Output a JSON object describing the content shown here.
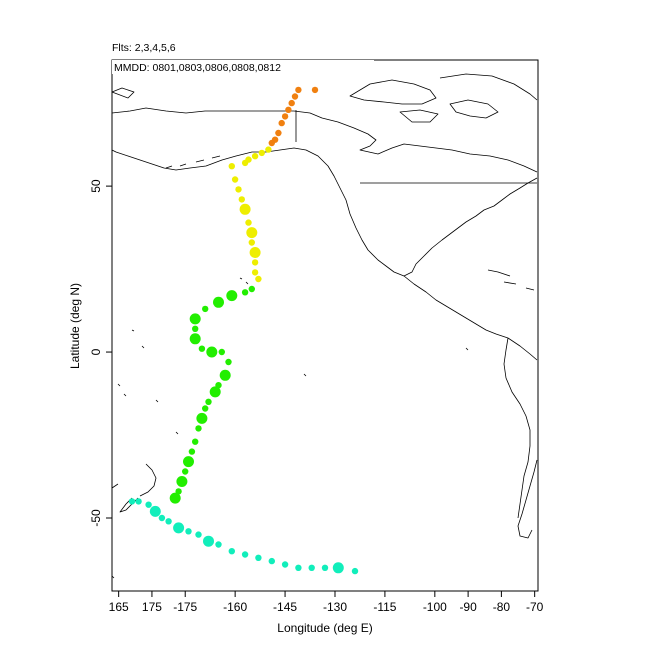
{
  "header": {
    "flights_label": "Flts: 2,3,4,5,6",
    "dates_label": "MMDD: 0801,0803,0806,0808,0812"
  },
  "axes": {
    "xlabel": "Longitude (deg E)",
    "ylabel": "Latitude (deg N)",
    "x_ticks": [
      {
        "value": 165,
        "label": "165"
      },
      {
        "value": 175,
        "label": "175"
      },
      {
        "value": 185,
        "label": "-175"
      },
      {
        "value": 200,
        "label": "-160"
      },
      {
        "value": 215,
        "label": "-145"
      },
      {
        "value": 230,
        "label": "-130"
      },
      {
        "value": 245,
        "label": "-115"
      },
      {
        "value": 260,
        "label": "-100"
      },
      {
        "value": 270,
        "label": "-90"
      },
      {
        "value": 280,
        "label": "-80"
      },
      {
        "value": 290,
        "label": "-70"
      }
    ],
    "y_ticks": [
      {
        "value": 50,
        "label": "50"
      },
      {
        "value": 0,
        "label": "0"
      },
      {
        "value": -50,
        "label": "-50"
      }
    ]
  },
  "chart_data": {
    "type": "scatter",
    "xlim": [
      163,
      291
    ],
    "ylim": [
      -72,
      88
    ],
    "grid": false,
    "series": [
      {
        "color": "#f08010",
        "points": [
          [
            224,
            79,
            1
          ],
          [
            219,
            79,
            1
          ],
          [
            218,
            77,
            1
          ],
          [
            217,
            75,
            1
          ],
          [
            216,
            73,
            1
          ],
          [
            215,
            71,
            1
          ],
          [
            214,
            69,
            1
          ],
          [
            213,
            66,
            1
          ],
          [
            212,
            64,
            1
          ],
          [
            211,
            63,
            1
          ]
        ]
      },
      {
        "color": "#eeee00",
        "points": [
          [
            210,
            61,
            1
          ],
          [
            208,
            60,
            1
          ],
          [
            206,
            59,
            1
          ],
          [
            204,
            58,
            1
          ],
          [
            203,
            57,
            1
          ],
          [
            199,
            56,
            1
          ],
          [
            200,
            52,
            1
          ],
          [
            201,
            49,
            1
          ],
          [
            202,
            46,
            1
          ],
          [
            203,
            43,
            2
          ],
          [
            204,
            39,
            1
          ],
          [
            205,
            36,
            2
          ],
          [
            205,
            33,
            1
          ],
          [
            206,
            30,
            2
          ],
          [
            206,
            27,
            1
          ],
          [
            206,
            24,
            1
          ],
          [
            207,
            22,
            1
          ]
        ]
      },
      {
        "color": "#22ee00",
        "points": [
          [
            205,
            19,
            1
          ],
          [
            203,
            18,
            1
          ],
          [
            199,
            17,
            2
          ],
          [
            195,
            15,
            2
          ],
          [
            191,
            13,
            1
          ],
          [
            188,
            10,
            2
          ],
          [
            188,
            7,
            1
          ],
          [
            188,
            4,
            2
          ],
          [
            190,
            1,
            1
          ],
          [
            193,
            0,
            2
          ],
          [
            196,
            0,
            1
          ],
          [
            198,
            -3,
            1
          ],
          [
            197,
            -7,
            2
          ],
          [
            195,
            -10,
            1
          ],
          [
            194,
            -12,
            2
          ],
          [
            192,
            -15,
            1
          ],
          [
            191,
            -17,
            1
          ],
          [
            190,
            -20,
            2
          ],
          [
            189,
            -23,
            1
          ],
          [
            188,
            -27,
            1
          ],
          [
            187,
            -30,
            1
          ],
          [
            186,
            -33,
            2
          ],
          [
            185,
            -36,
            1
          ],
          [
            184,
            -39,
            2
          ],
          [
            183,
            -42,
            1
          ],
          [
            182,
            -44,
            2
          ]
        ]
      },
      {
        "color": "#11eebb",
        "points": [
          [
            169,
            -45,
            1
          ],
          [
            171,
            -45,
            1
          ],
          [
            174,
            -46,
            1
          ],
          [
            176,
            -48,
            2
          ],
          [
            178,
            -50,
            1
          ],
          [
            180,
            -51,
            1
          ],
          [
            183,
            -53,
            2
          ],
          [
            186,
            -54,
            1
          ],
          [
            189,
            -55,
            1
          ],
          [
            192,
            -57,
            2
          ],
          [
            195,
            -58,
            1
          ],
          [
            199,
            -60,
            1
          ],
          [
            203,
            -61,
            1
          ],
          [
            207,
            -62,
            1
          ],
          [
            211,
            -63,
            1
          ],
          [
            215,
            -64,
            1
          ],
          [
            219,
            -65,
            1
          ],
          [
            223,
            -65,
            1
          ],
          [
            227,
            -65,
            1
          ],
          [
            231,
            -65,
            2
          ],
          [
            236,
            -66,
            1
          ]
        ]
      }
    ]
  }
}
